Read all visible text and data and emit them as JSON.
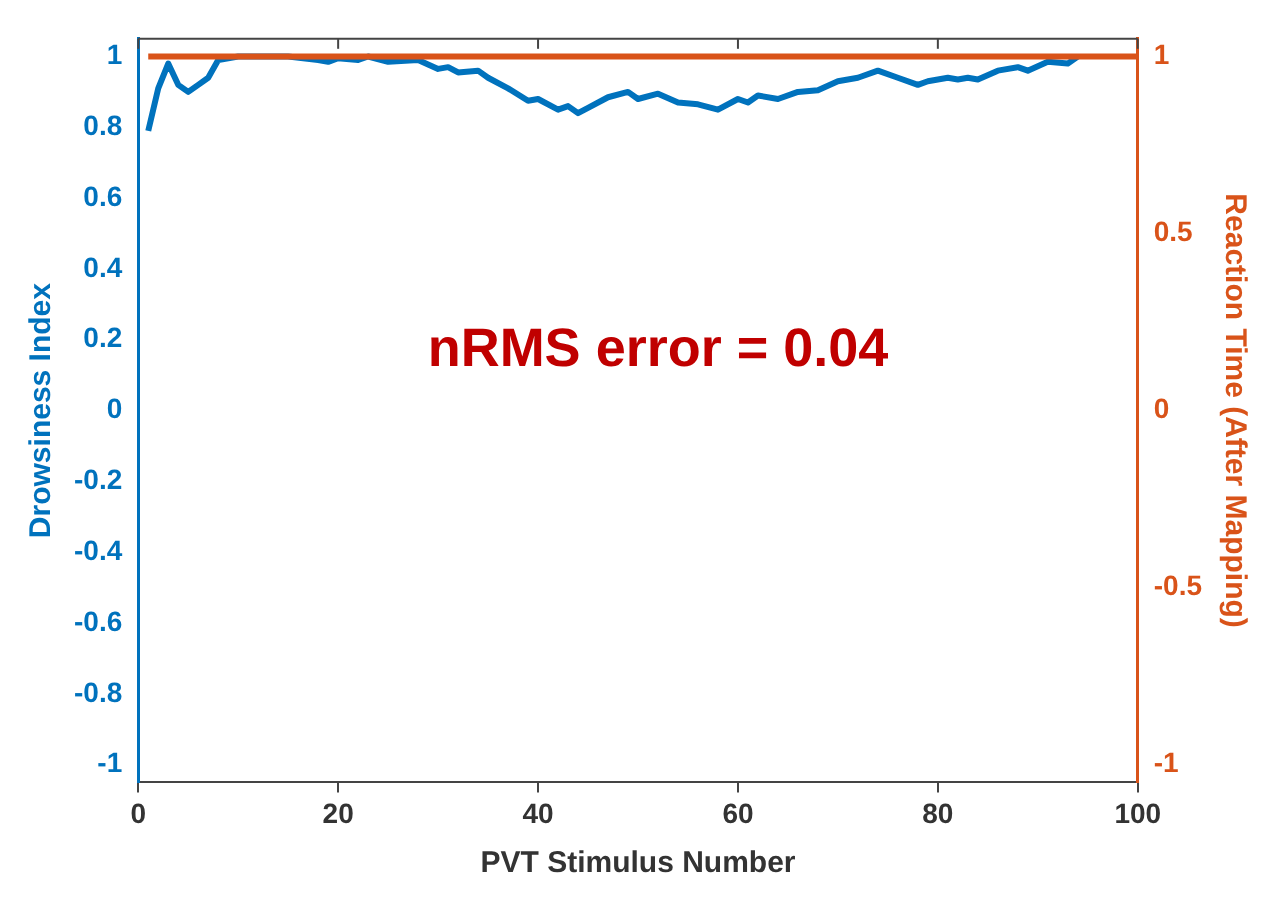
{
  "chart_data": {
    "type": "line",
    "xlabel": "PVT Stimulus Number",
    "ylabel": "Drowsiness Index",
    "y2label": "Reaction Time (After Mapping)",
    "annotations": [
      "nRMS error = 0.04"
    ],
    "xlim": [
      0,
      100
    ],
    "xticks": [
      0,
      20,
      40,
      60,
      80,
      100
    ],
    "ylim": [
      -1.05,
      1.05
    ],
    "yticks": [
      -1,
      -0.8,
      -0.6,
      -0.4,
      -0.2,
      0,
      0.2,
      0.4,
      0.6,
      0.8,
      1
    ],
    "y2lim": [
      -1.05,
      1.05
    ],
    "y2ticks": [
      -1,
      -0.5,
      0,
      0.5,
      1
    ],
    "grid": false,
    "legend": false,
    "marker": "none",
    "line_style": "solid",
    "series": [
      {
        "color": "#0072bd",
        "x": [
          1,
          2,
          3,
          4,
          5,
          6,
          7,
          8,
          10,
          15,
          18,
          19,
          20,
          22,
          23,
          25,
          28,
          30,
          31,
          32,
          34,
          35,
          37,
          39,
          40,
          42,
          43,
          44,
          45,
          47,
          49,
          50,
          52,
          54,
          56,
          58,
          60,
          61,
          62,
          64,
          66,
          68,
          70,
          72,
          74,
          76,
          78,
          79,
          81,
          82,
          83,
          84,
          86,
          88,
          89,
          91,
          93,
          94
        ],
        "values": [
          0.79,
          0.91,
          0.98,
          0.92,
          0.9,
          0.92,
          0.94,
          0.99,
          1,
          1,
          0.99,
          0.985,
          0.995,
          0.99,
          1,
          0.985,
          0.99,
          0.965,
          0.97,
          0.955,
          0.96,
          0.94,
          0.91,
          0.875,
          0.88,
          0.85,
          0.86,
          0.84,
          0.855,
          0.885,
          0.9,
          0.88,
          0.895,
          0.87,
          0.865,
          0.85,
          0.88,
          0.87,
          0.89,
          0.88,
          0.9,
          0.905,
          0.93,
          0.94,
          0.96,
          0.94,
          0.92,
          0.93,
          0.94,
          0.935,
          0.94,
          0.935,
          0.96,
          0.97,
          0.96,
          0.985,
          0.98,
          1
        ]
      },
      {
        "color": "#d95319",
        "axis": "y2",
        "x": [
          1,
          100
        ],
        "values": [
          1,
          1
        ]
      }
    ]
  }
}
